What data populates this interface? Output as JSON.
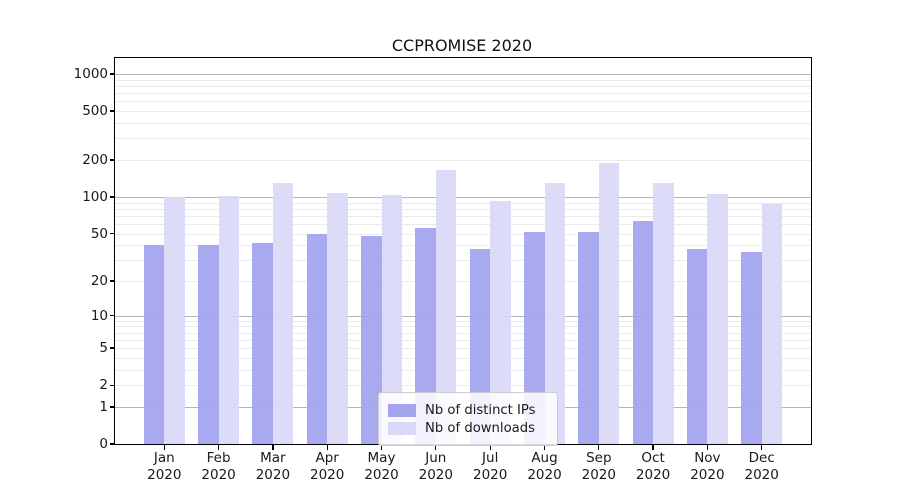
{
  "title": "CCPROMISE 2020",
  "legend": {
    "items": [
      {
        "label": "Nb of distinct IPs"
      },
      {
        "label": "Nb of downloads"
      }
    ]
  },
  "colors": {
    "distinct_ips_bar": "#a3a3ee",
    "downloads_bar": "#d9d9f7",
    "major_gridline": "#b5b5b5",
    "minor_gridline": "#ebebeb",
    "axis_text": "#1a1a1a"
  },
  "chart_data": {
    "type": "bar",
    "title": "CCPROMISE 2020",
    "categories": [
      "Jan 2020",
      "Feb 2020",
      "Mar 2020",
      "Apr 2020",
      "May 2020",
      "Jun 2020",
      "Jul 2020",
      "Aug 2020",
      "Sep 2020",
      "Oct 2020",
      "Nov 2020",
      "Dec 2020"
    ],
    "series": [
      {
        "name": "Nb of distinct IPs",
        "color": "#a3a3ee",
        "values": [
          40,
          40,
          42,
          50,
          48,
          56,
          37,
          51,
          51,
          64,
          37,
          35
        ]
      },
      {
        "name": "Nb of downloads",
        "color": "#d9d9f7",
        "values": [
          100,
          101,
          130,
          108,
          104,
          165,
          93,
          130,
          190,
          130,
          105,
          87
        ]
      }
    ],
    "xlabel": "",
    "ylabel": "",
    "y_scale": "log10(value+1)",
    "y_ticks": [
      0,
      1,
      2,
      5,
      10,
      20,
      50,
      100,
      200,
      500,
      1000
    ],
    "ylim": [
      0,
      1350
    ],
    "grid": "major and minor horizontal",
    "legend_position": "lower center"
  }
}
